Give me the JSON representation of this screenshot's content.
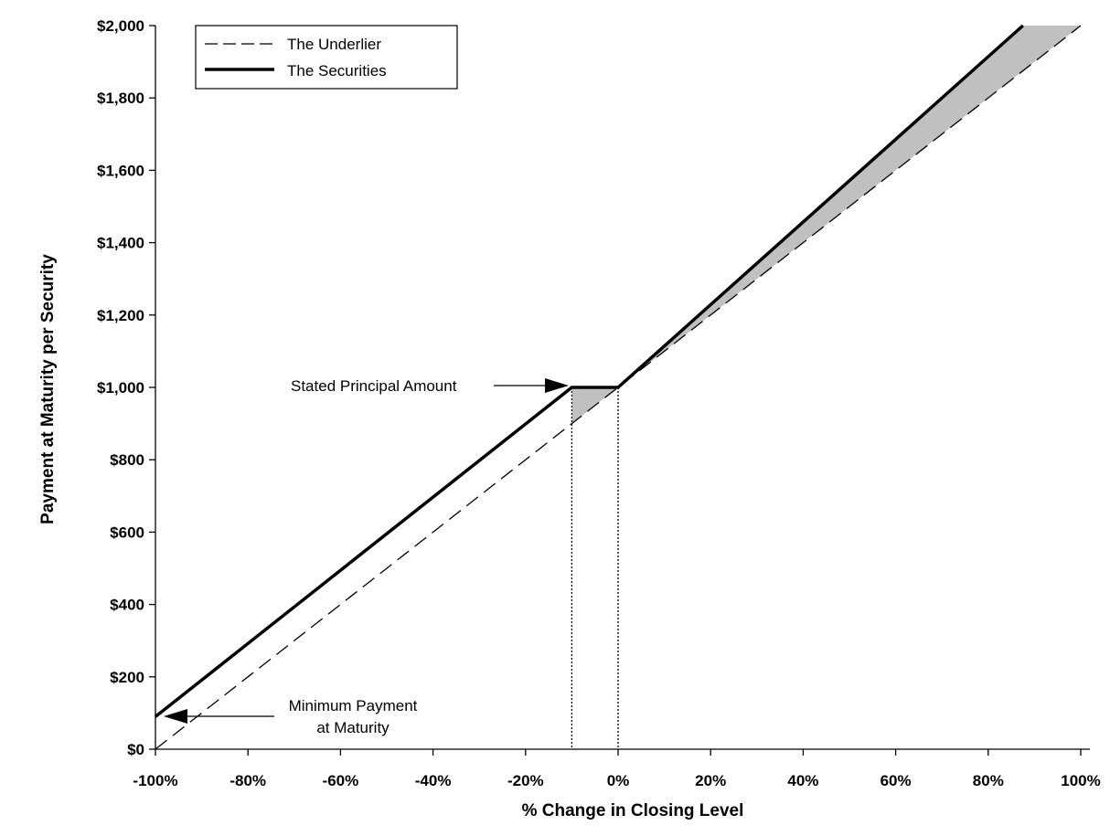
{
  "chart_data": {
    "type": "line",
    "xlabel": "% Change in Closing Level",
    "ylabel": "Payment at Maturity per Security",
    "x_ticks": [
      "-100%",
      "-80%",
      "-60%",
      "-40%",
      "-20%",
      "0%",
      "20%",
      "40%",
      "60%",
      "80%",
      "100%"
    ],
    "y_ticks": [
      "$0",
      "$200",
      "$400",
      "$600",
      "$800",
      "$1,000",
      "$1,200",
      "$1,400",
      "$1,600",
      "$1,800",
      "$2,000"
    ],
    "xlim": [
      -100,
      100
    ],
    "ylim": [
      0,
      2000
    ],
    "grid": false,
    "legend_position": "top-left",
    "series": [
      {
        "name": "The Underlier",
        "style": "dashed",
        "x": [
          -100,
          100
        ],
        "y": [
          0,
          2000
        ]
      },
      {
        "name": "The Securities",
        "style": "solid-bold",
        "x": [
          -100,
          -10,
          0,
          87.5
        ],
        "y": [
          90,
          1000,
          1000,
          2000
        ]
      }
    ],
    "shaded_regions": [
      {
        "x": [
          -10,
          0
        ],
        "description": "between the securities and the underlier"
      },
      {
        "x": [
          0,
          100
        ],
        "description": "between the securities and the underlier"
      }
    ],
    "reference_lines": [
      -10,
      0
    ],
    "annotations": [
      {
        "text": "Stated Principal Amount",
        "x": -10,
        "y": 1000
      },
      {
        "text_lines": [
          "Minimum Payment",
          "at Maturity"
        ],
        "x": -100,
        "y": 90
      }
    ],
    "colors": {
      "line": "#000000",
      "shade": "#c0c0c0",
      "background": "#ffffff"
    }
  }
}
